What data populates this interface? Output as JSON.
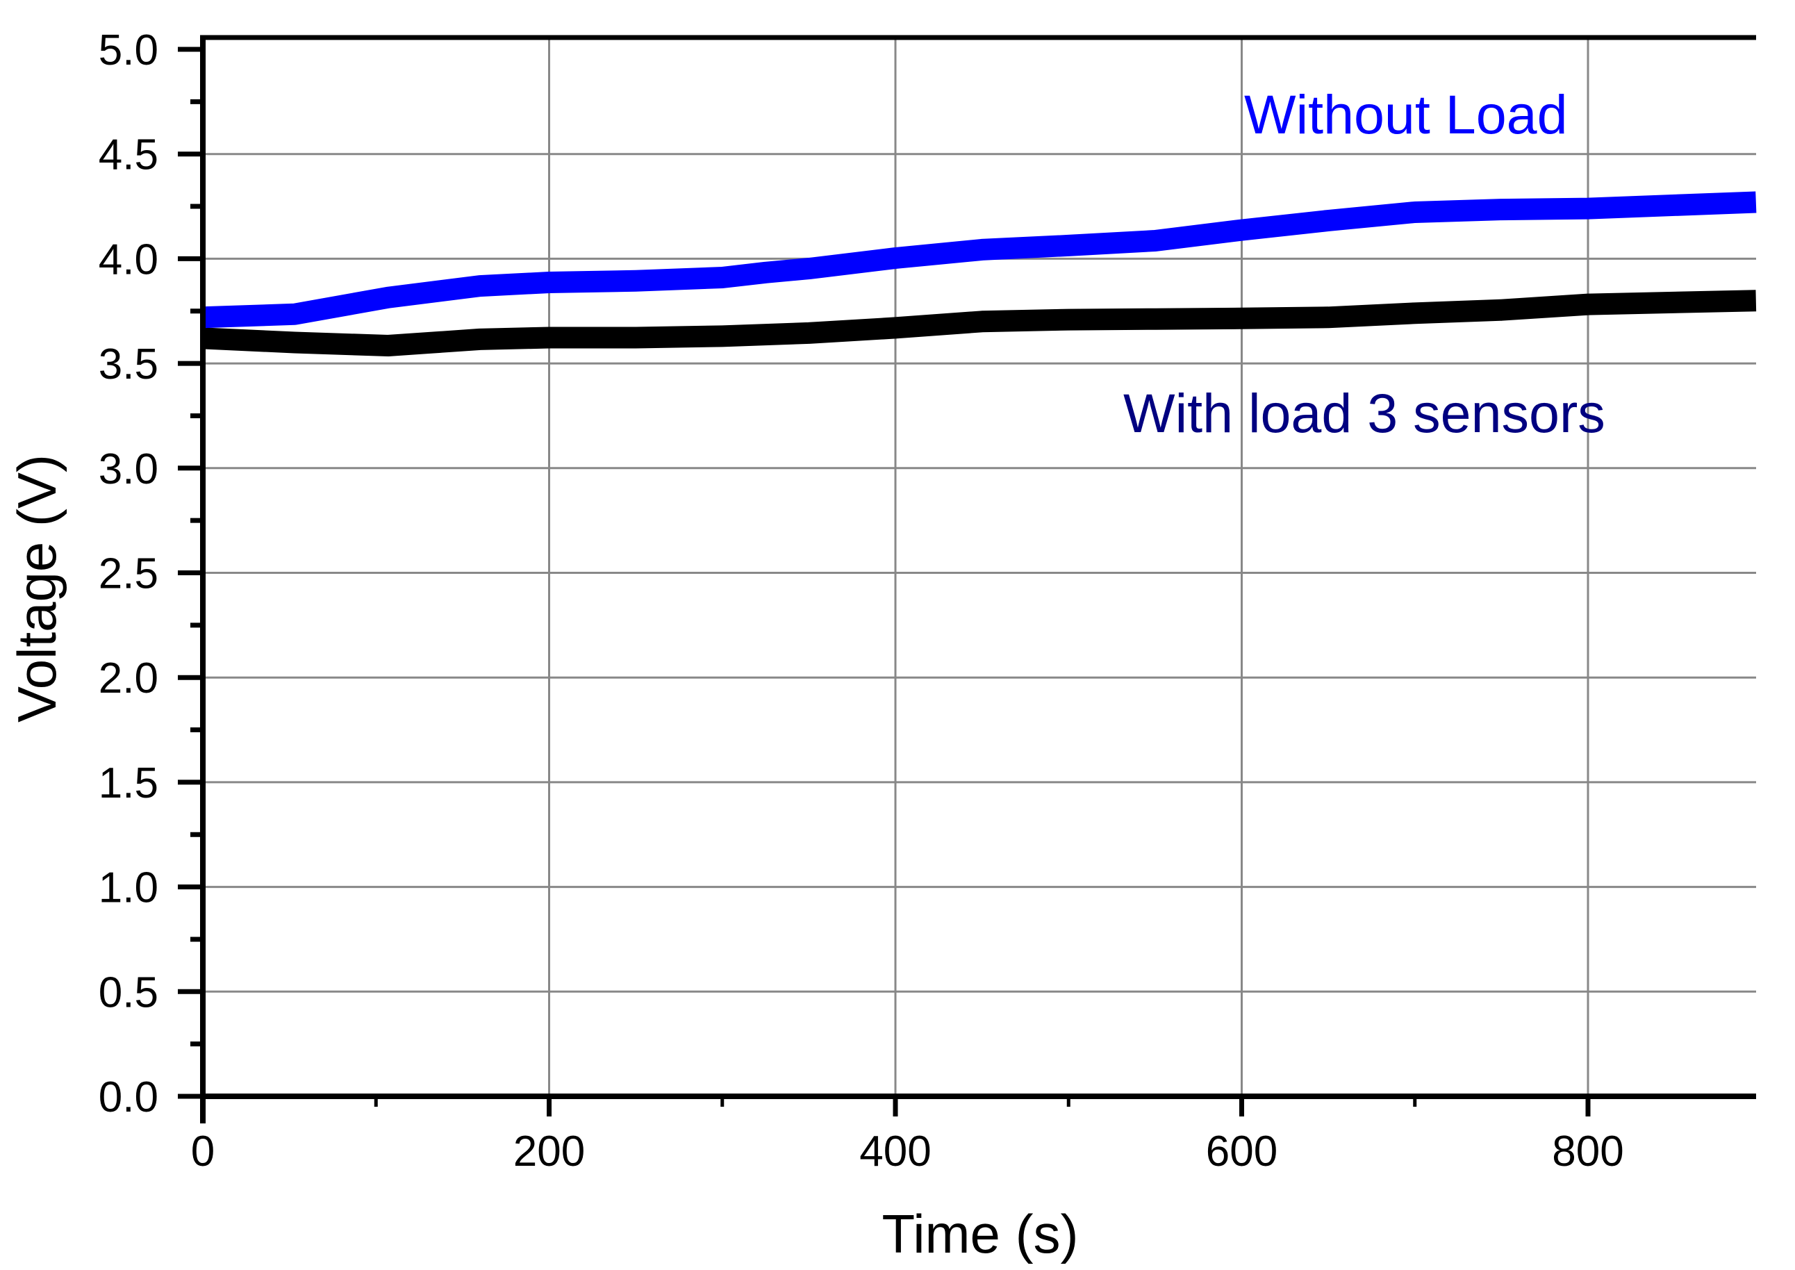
{
  "chart_data": {
    "type": "line",
    "title": "",
    "xlabel": "Time (s)",
    "ylabel": "Voltage (V)",
    "xlim": [
      0,
      897
    ],
    "ylim": [
      0,
      5.05
    ],
    "grid": true,
    "legend_position": "none (inline text annotations)",
    "x_ticks": [
      0,
      200,
      400,
      600,
      800
    ],
    "x_tick_labels": [
      "0",
      "200",
      "400",
      "600",
      "800"
    ],
    "x_minor_ticks": [
      100,
      300,
      500,
      700
    ],
    "y_ticks": [
      0.0,
      0.5,
      1.0,
      1.5,
      2.0,
      2.5,
      3.0,
      3.5,
      4.0,
      4.5,
      5.0
    ],
    "y_tick_labels": [
      "0.0",
      "0.5",
      "1.0",
      "1.5",
      "2.0",
      "2.5",
      "3.0",
      "3.5",
      "4.0",
      "4.5",
      "5.0"
    ],
    "y_minor_ticks": [
      0.25,
      0.75,
      1.25,
      1.75,
      2.25,
      2.75,
      3.25,
      3.75,
      4.25,
      4.75
    ],
    "series": [
      {
        "name": "Without Load",
        "color": "#0000FF",
        "x": [
          0,
          53,
          107,
          160,
          200,
          250,
          300,
          325,
          350,
          400,
          450,
          500,
          550,
          600,
          650,
          700,
          750,
          800,
          897
        ],
        "values": [
          3.72,
          3.735,
          3.815,
          3.87,
          3.887,
          3.894,
          3.91,
          3.934,
          3.953,
          4.003,
          4.043,
          4.063,
          4.086,
          4.137,
          4.182,
          4.222,
          4.235,
          4.24,
          4.27
        ]
      },
      {
        "name": "With load 3 sensors",
        "color": "#000000",
        "x": [
          0,
          53,
          107,
          160,
          200,
          250,
          300,
          350,
          400,
          450,
          500,
          550,
          600,
          650,
          700,
          750,
          800,
          897
        ],
        "values": [
          3.62,
          3.6,
          3.585,
          3.615,
          3.623,
          3.623,
          3.63,
          3.645,
          3.67,
          3.7,
          3.709,
          3.712,
          3.715,
          3.72,
          3.74,
          3.755,
          3.782,
          3.8
        ]
      }
    ],
    "annotations": [
      {
        "text": "Without Load",
        "color": "#0000FF",
        "x": 1791,
        "y": 192
      },
      {
        "text": "With load 3 sensors",
        "color": "#000080",
        "x": 1617,
        "y": 622
      }
    ]
  }
}
